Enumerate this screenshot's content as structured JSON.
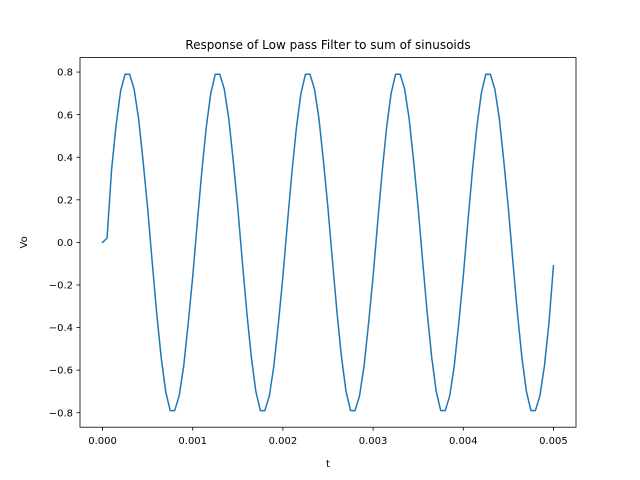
{
  "chart_data": {
    "type": "line",
    "title": "Response of Low pass Filter to sum of sinusoids",
    "xlabel": "t",
    "ylabel": "Vo",
    "xlim": [
      -0.00025,
      0.00525
    ],
    "ylim": [
      -0.868,
      0.868
    ],
    "xticks": [
      0.0,
      0.001,
      0.002,
      0.003,
      0.004,
      0.005
    ],
    "xtick_labels": [
      "0.000",
      "0.001",
      "0.002",
      "0.003",
      "0.004",
      "0.005"
    ],
    "yticks": [
      -0.8,
      -0.6,
      -0.4,
      -0.2,
      0.0,
      0.2,
      0.4,
      0.6,
      0.8
    ],
    "ytick_labels": [
      "−0.8",
      "−0.6",
      "−0.4",
      "−0.2",
      "0.0",
      "0.2",
      "0.4",
      "0.6",
      "0.8"
    ],
    "grid": false,
    "legend": "none",
    "series": [
      {
        "color": "#1f77b4",
        "x": [
          0.0,
          5e-05,
          0.0001,
          0.00015,
          0.0002,
          0.00025,
          0.0003,
          0.00035,
          0.0004,
          0.00045,
          0.0005,
          0.00055,
          0.0006,
          0.00065,
          0.0007,
          0.00075,
          0.0008,
          0.00085,
          0.0009,
          0.00095,
          0.001,
          0.00105,
          0.0011,
          0.00115,
          0.0012,
          0.00125,
          0.0013,
          0.00135,
          0.0014,
          0.00145,
          0.0015,
          0.00155,
          0.0016,
          0.00165,
          0.0017,
          0.00175,
          0.0018,
          0.00185,
          0.0019,
          0.00195,
          0.002,
          0.00205,
          0.0021,
          0.00215,
          0.0022,
          0.00225,
          0.0023,
          0.00235,
          0.0024,
          0.00245,
          0.0025,
          0.00255,
          0.0026,
          0.00265,
          0.0027,
          0.00275,
          0.0028,
          0.00285,
          0.0029,
          0.00295,
          0.003,
          0.00305,
          0.0031,
          0.00315,
          0.0032,
          0.00325,
          0.0033,
          0.00335,
          0.0034,
          0.00345,
          0.0035,
          0.00355,
          0.0036,
          0.00365,
          0.0037,
          0.00375,
          0.0038,
          0.00385,
          0.0039,
          0.00395,
          0.004,
          0.00405,
          0.0041,
          0.00415,
          0.0042,
          0.00425,
          0.0043,
          0.00435,
          0.0044,
          0.00445,
          0.0045,
          0.00455,
          0.0046,
          0.00465,
          0.0047,
          0.00475,
          0.0048,
          0.00485,
          0.0049,
          0.00495,
          0.005
        ],
        "y": [
          0.0,
          0.02,
          0.34,
          0.55,
          0.71,
          0.79,
          0.79,
          0.72,
          0.58,
          0.38,
          0.16,
          -0.09,
          -0.33,
          -0.54,
          -0.7,
          -0.79,
          -0.79,
          -0.72,
          -0.58,
          -0.38,
          -0.16,
          0.09,
          0.33,
          0.54,
          0.7,
          0.79,
          0.79,
          0.72,
          0.58,
          0.38,
          0.16,
          -0.09,
          -0.33,
          -0.54,
          -0.7,
          -0.79,
          -0.79,
          -0.72,
          -0.58,
          -0.38,
          -0.16,
          0.09,
          0.33,
          0.54,
          0.7,
          0.79,
          0.79,
          0.72,
          0.58,
          0.38,
          0.16,
          -0.09,
          -0.33,
          -0.54,
          -0.7,
          -0.79,
          -0.79,
          -0.72,
          -0.58,
          -0.38,
          -0.16,
          0.09,
          0.33,
          0.54,
          0.7,
          0.79,
          0.79,
          0.72,
          0.58,
          0.38,
          0.16,
          -0.09,
          -0.33,
          -0.54,
          -0.7,
          -0.79,
          -0.79,
          -0.72,
          -0.58,
          -0.38,
          -0.16,
          0.09,
          0.33,
          0.54,
          0.7,
          0.79,
          0.79,
          0.72,
          0.58,
          0.38,
          0.16,
          -0.09,
          -0.33,
          -0.54,
          -0.7,
          -0.79,
          -0.79,
          -0.72,
          -0.58,
          -0.38,
          -0.11
        ]
      }
    ]
  }
}
